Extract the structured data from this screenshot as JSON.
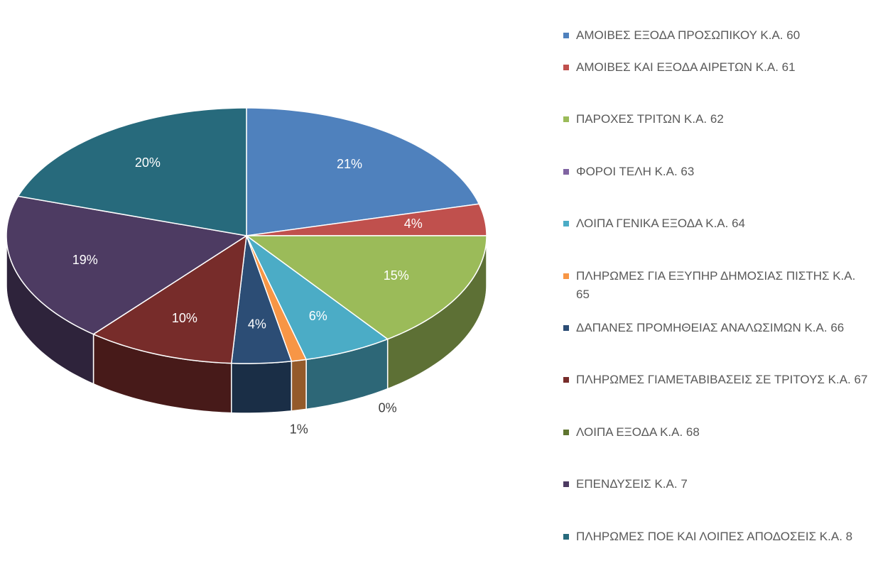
{
  "chart_data": {
    "type": "pie3d",
    "categories": [
      "ΑΜΟΙΒΕΣ ΕΞΟΔΑ ΠΡΟΣΩΠΙΚΟΥ Κ.Α. 60",
      "ΑΜΟΙΒΕΣ ΚΑΙ ΕΞΟΔΑ ΑΙΡΕΤΩΝ Κ.Α. 61",
      "ΠΑΡΟΧΕΣ ΤΡΙΤΩΝ Κ.Α. 62",
      "ΦΟΡΟΙ ΤΕΛΗ Κ.Α. 63",
      "ΛΟΙΠΑ ΓΕΝΙΚΑ ΕΞΟΔΑ Κ.Α. 64",
      "ΠΛΗΡΩΜΕΣ ΓΙΑ ΕΞΥΠΗΡ ΔΗΜΟΣΙΑΣ ΠΙΣΤΗΣ Κ.Α. 65",
      "ΔΑΠΑΝΕΣ ΠΡΟΜΗΘΕΙΑΣ ΑΝΑΛΩΣΙΜΩΝ Κ.Α. 66",
      "ΠΛΗΡΩΜΕΣ ΓΙΑΜΕΤΑΒΙΒΑΣΕΙΣ ΣΕ ΤΡΙΤΟΥΣ Κ.Α. 67",
      "ΛΟΙΠΑ ΕΞΟΔΑ Κ.Α. 68",
      "ΕΠΕΝΔΥΣΕΙΣ Κ.Α. 7",
      "ΠΛΗΡΩΜΕΣ ΠΟΕ ΚΑΙ ΛΟΙΠΕΣ ΑΠΟΔΟΣΕΙΣ Κ.Α. 8"
    ],
    "values": [
      21,
      4,
      15,
      0,
      6,
      1,
      4,
      10,
      0,
      19,
      20
    ],
    "value_labels": [
      "21%",
      "4%",
      "15%",
      "0%",
      "6%",
      "1%",
      "4%",
      "10%",
      null,
      "19%",
      "20%"
    ],
    "colors": [
      "#4f81bd",
      "#c0504d",
      "#9bbb59",
      "#8064a2",
      "#4bacc6",
      "#f79646",
      "#2c4d75",
      "#772c2a",
      "#5f7530",
      "#4d3b62",
      "#276a7c"
    ],
    "legend": "right"
  }
}
